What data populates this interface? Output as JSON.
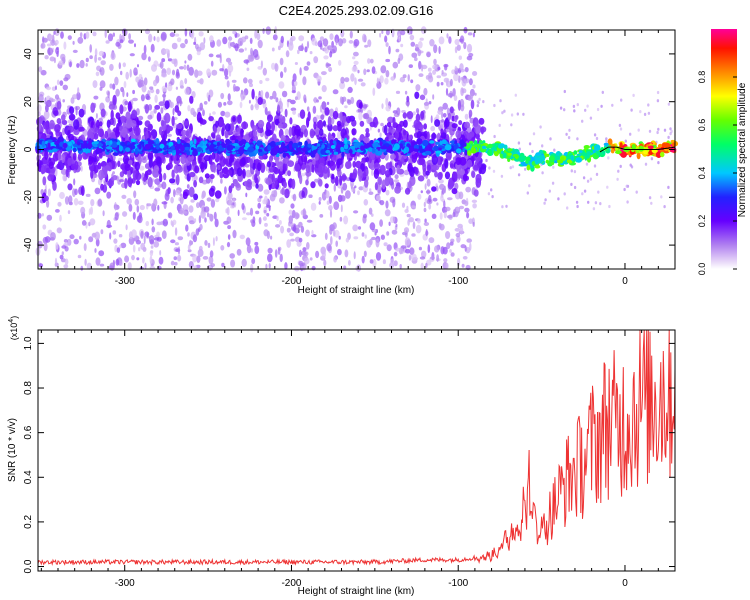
{
  "title": "C2E4.2025.293.02.09.G16",
  "chart_data": [
    {
      "type": "heatmap",
      "title": "C2E4.2025.293.02.09.G16",
      "xlabel": "Height of straight line (km)",
      "ylabel": "Frequency (Hz)",
      "xlim": [
        -352,
        30
      ],
      "ylim": [
        -50,
        50
      ],
      "xticks": [
        -300,
        -200,
        -100,
        0
      ],
      "yticks": [
        -40,
        -20,
        0,
        20,
        40
      ],
      "xtick_labels": [
        "-300",
        "-200",
        "-100",
        "0"
      ],
      "ytick_labels": [
        "-40",
        "-20",
        "0",
        "20",
        "40"
      ],
      "colorbar": {
        "label": "Normalized spectral amplitude",
        "range": [
          0,
          1
        ],
        "ticks": [
          0.0,
          0.2,
          0.4,
          0.6,
          0.8
        ],
        "tick_labels": [
          "0.0",
          "0.2",
          "0.4",
          "0.6",
          "0.8"
        ]
      },
      "ridge": {
        "x": [
          -352,
          -300,
          -250,
          -200,
          -150,
          -110,
          -95,
          -85,
          -75,
          -65,
          -55,
          -50,
          -45,
          -40,
          -30,
          -20,
          -15,
          -10,
          -5,
          0,
          10,
          20,
          30
        ],
        "y": [
          2,
          1,
          1,
          0,
          1,
          1,
          1,
          1,
          0,
          -3,
          -6,
          -3,
          -3,
          -4,
          -3,
          -1,
          -1,
          1,
          1,
          0,
          0,
          0,
          1
        ]
      }
    },
    {
      "type": "line",
      "xlabel": "Height of straight line (km)",
      "ylabel": "SNR (10 * v/v)",
      "scale_label": "(x10",
      "scale_exp": "4",
      "scale_close": ")",
      "xlim": [
        -352,
        30
      ],
      "ylim": [
        -0.02,
        1.06
      ],
      "xticks": [
        -300,
        -200,
        -100,
        0
      ],
      "yticks": [
        0.0,
        0.2,
        0.4,
        0.6,
        0.8,
        1.0
      ],
      "xtick_labels": [
        "-300",
        "-200",
        "-100",
        "0"
      ],
      "ytick_labels": [
        "0.0",
        "0.2",
        "0.4",
        "0.6",
        "0.8",
        "1.0"
      ],
      "series": [
        {
          "name": "SNR",
          "color": "#ee3333",
          "x": [
            -352,
            -300,
            -250,
            -200,
            -150,
            -120,
            -110,
            -100,
            -90,
            -80,
            -75,
            -70,
            -65,
            -60,
            -58,
            -55,
            -50,
            -45,
            -40,
            -35,
            -30,
            -25,
            -20,
            -15,
            -10,
            -5,
            0,
            10,
            20,
            30
          ],
          "y": [
            0.02,
            0.02,
            0.02,
            0.02,
            0.02,
            0.03,
            0.03,
            0.03,
            0.04,
            0.06,
            0.1,
            0.15,
            0.22,
            0.3,
            0.45,
            0.25,
            0.2,
            0.3,
            0.4,
            0.5,
            0.55,
            0.6,
            0.7,
            0.75,
            0.85,
            0.8,
            0.85,
            0.95,
            1.0,
            1.04
          ]
        }
      ]
    }
  ]
}
